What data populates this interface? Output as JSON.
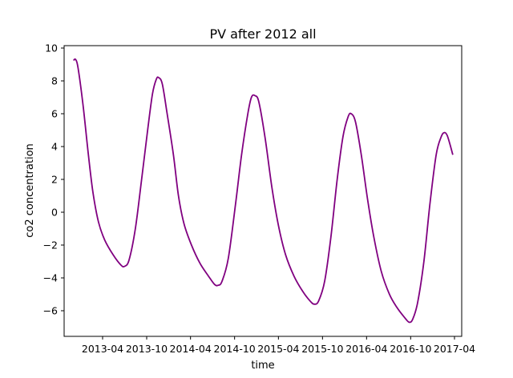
{
  "chart_data": {
    "type": "line",
    "title": "PV after 2012 all",
    "xlabel": "time",
    "ylabel": "co2 concentration",
    "x_tick_labels": [
      "2013-04",
      "2013-10",
      "2014-04",
      "2014-10",
      "2015-04",
      "2015-10",
      "2016-04",
      "2016-10",
      "2017-04"
    ],
    "y_ticks": [
      -6,
      -4,
      -2,
      0,
      2,
      4,
      6,
      8,
      10
    ],
    "series_color": "#800080",
    "grid": false,
    "series": [
      {
        "values": [
          {
            "x": "2012-12-01",
            "y": 9.25
          },
          {
            "x": "2012-12-10",
            "y": 9.3
          },
          {
            "x": "2012-12-20",
            "y": 8.8
          },
          {
            "x": "2013-01-10",
            "y": 6.5
          },
          {
            "x": "2013-02-01",
            "y": 3.5
          },
          {
            "x": "2013-02-20",
            "y": 1.2
          },
          {
            "x": "2013-03-15",
            "y": -0.6
          },
          {
            "x": "2013-04-10",
            "y": -1.7
          },
          {
            "x": "2013-05-15",
            "y": -2.6
          },
          {
            "x": "2013-06-15",
            "y": -3.2
          },
          {
            "x": "2013-07-01",
            "y": -3.3
          },
          {
            "x": "2013-07-20",
            "y": -2.9
          },
          {
            "x": "2013-08-15",
            "y": -1.0
          },
          {
            "x": "2013-09-10",
            "y": 2.0
          },
          {
            "x": "2013-10-05",
            "y": 5.0
          },
          {
            "x": "2013-10-25",
            "y": 7.2
          },
          {
            "x": "2013-11-10",
            "y": 8.1
          },
          {
            "x": "2013-11-20",
            "y": 8.2
          },
          {
            "x": "2013-12-05",
            "y": 7.8
          },
          {
            "x": "2013-12-25",
            "y": 6.0
          },
          {
            "x": "2014-01-20",
            "y": 3.5
          },
          {
            "x": "2014-02-10",
            "y": 1.0
          },
          {
            "x": "2014-03-05",
            "y": -0.7
          },
          {
            "x": "2014-04-05",
            "y": -2.0
          },
          {
            "x": "2014-05-10",
            "y": -3.1
          },
          {
            "x": "2014-06-15",
            "y": -3.9
          },
          {
            "x": "2014-07-10",
            "y": -4.4
          },
          {
            "x": "2014-07-25",
            "y": -4.45
          },
          {
            "x": "2014-08-10",
            "y": -4.2
          },
          {
            "x": "2014-09-05",
            "y": -2.8
          },
          {
            "x": "2014-10-05",
            "y": 0.5
          },
          {
            "x": "2014-10-30",
            "y": 3.5
          },
          {
            "x": "2014-11-25",
            "y": 6.0
          },
          {
            "x": "2014-12-10",
            "y": 7.0
          },
          {
            "x": "2014-12-25",
            "y": 7.1
          },
          {
            "x": "2015-01-10",
            "y": 6.7
          },
          {
            "x": "2015-02-05",
            "y": 4.5
          },
          {
            "x": "2015-03-05",
            "y": 1.5
          },
          {
            "x": "2015-04-01",
            "y": -0.8
          },
          {
            "x": "2015-05-01",
            "y": -2.6
          },
          {
            "x": "2015-06-05",
            "y": -3.9
          },
          {
            "x": "2015-07-10",
            "y": -4.8
          },
          {
            "x": "2015-08-10",
            "y": -5.4
          },
          {
            "x": "2015-08-28",
            "y": -5.6
          },
          {
            "x": "2015-09-15",
            "y": -5.4
          },
          {
            "x": "2015-10-10",
            "y": -4.2
          },
          {
            "x": "2015-11-05",
            "y": -1.5
          },
          {
            "x": "2015-12-01",
            "y": 2.0
          },
          {
            "x": "2015-12-25",
            "y": 4.6
          },
          {
            "x": "2016-01-15",
            "y": 5.8
          },
          {
            "x": "2016-01-28",
            "y": 6.0
          },
          {
            "x": "2016-02-15",
            "y": 5.5
          },
          {
            "x": "2016-03-10",
            "y": 3.5
          },
          {
            "x": "2016-04-05",
            "y": 0.8
          },
          {
            "x": "2016-05-01",
            "y": -1.5
          },
          {
            "x": "2016-06-01",
            "y": -3.6
          },
          {
            "x": "2016-07-05",
            "y": -5.0
          },
          {
            "x": "2016-08-05",
            "y": -5.8
          },
          {
            "x": "2016-09-05",
            "y": -6.4
          },
          {
            "x": "2016-09-25",
            "y": -6.7
          },
          {
            "x": "2016-10-10",
            "y": -6.5
          },
          {
            "x": "2016-10-30",
            "y": -5.5
          },
          {
            "x": "2016-11-25",
            "y": -3.0
          },
          {
            "x": "2016-12-20",
            "y": 0.5
          },
          {
            "x": "2017-01-15",
            "y": 3.5
          },
          {
            "x": "2017-02-05",
            "y": 4.6
          },
          {
            "x": "2017-02-18",
            "y": 4.85
          },
          {
            "x": "2017-03-01",
            "y": 4.7
          },
          {
            "x": "2017-03-12",
            "y": 4.2
          },
          {
            "x": "2017-03-25",
            "y": 3.5
          }
        ]
      }
    ]
  }
}
